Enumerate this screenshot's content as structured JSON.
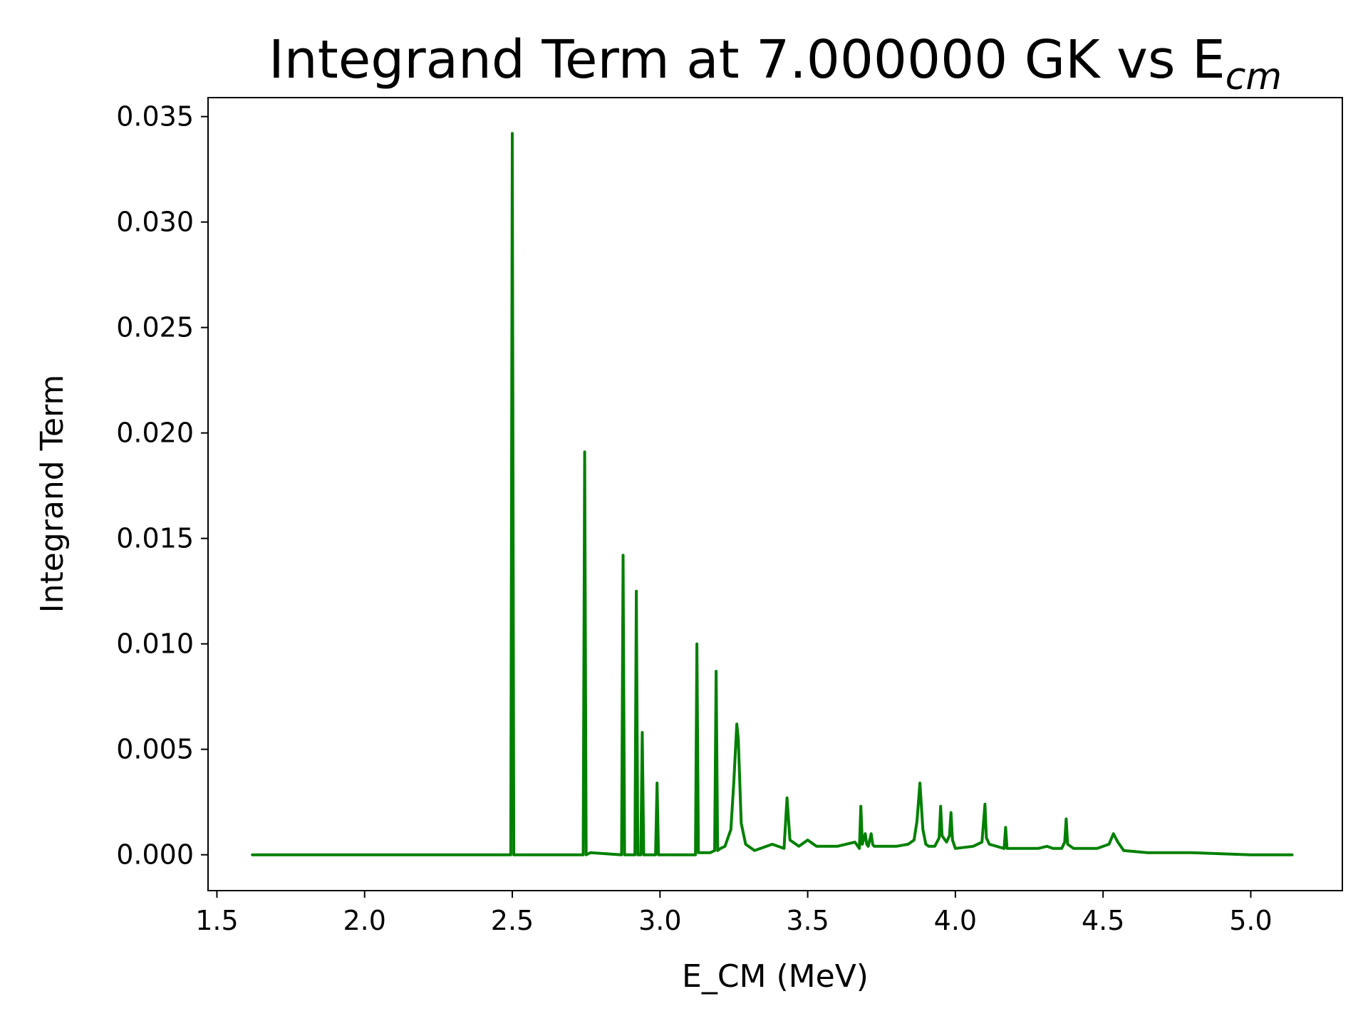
{
  "chart_data": {
    "type": "line",
    "title": "Integrand Term at 7.000000 GK vs E",
    "title_subscript": "cm",
    "xlabel": "E_CM (MeV)",
    "ylabel": "Integrand Term",
    "xlim": [
      1.47,
      5.31
    ],
    "ylim": [
      -0.0017,
      0.0359
    ],
    "xticks": [
      1.5,
      2.0,
      2.5,
      3.0,
      3.5,
      4.0,
      4.5,
      5.0
    ],
    "xtick_labels": [
      "1.5",
      "2.0",
      "2.5",
      "3.0",
      "3.5",
      "4.0",
      "4.5",
      "5.0"
    ],
    "yticks": [
      0.0,
      0.005,
      0.01,
      0.015,
      0.02,
      0.025,
      0.03,
      0.035
    ],
    "ytick_labels": [
      "0.000",
      "0.005",
      "0.010",
      "0.015",
      "0.020",
      "0.025",
      "0.030",
      "0.035"
    ],
    "grid": false,
    "series": [
      {
        "color": "#008000",
        "x": [
          1.62,
          2.0,
          2.495,
          2.5,
          2.505,
          2.74,
          2.745,
          2.75,
          2.765,
          2.87,
          2.875,
          2.88,
          2.915,
          2.92,
          2.925,
          2.935,
          2.94,
          2.945,
          2.985,
          2.99,
          2.995,
          3.0,
          3.1,
          3.12,
          3.125,
          3.13,
          3.17,
          3.185,
          3.19,
          3.195,
          3.205,
          3.22,
          3.24,
          3.25,
          3.26,
          3.265,
          3.275,
          3.29,
          3.32,
          3.38,
          3.42,
          3.43,
          3.44,
          3.47,
          3.5,
          3.53,
          3.6,
          3.66,
          3.675,
          3.68,
          3.685,
          3.695,
          3.7,
          3.705,
          3.715,
          3.72,
          3.725,
          3.75,
          3.8,
          3.84,
          3.86,
          3.87,
          3.88,
          3.89,
          3.9,
          3.91,
          3.93,
          3.945,
          3.95,
          3.955,
          3.97,
          3.98,
          3.985,
          3.99,
          4.0,
          4.06,
          4.09,
          4.1,
          4.105,
          4.115,
          4.165,
          4.17,
          4.175,
          4.2,
          4.28,
          4.31,
          4.33,
          4.36,
          4.37,
          4.375,
          4.38,
          4.4,
          4.48,
          4.52,
          4.535,
          4.55,
          4.57,
          4.65,
          4.8,
          5.0,
          5.14
        ],
        "y": [
          0.0,
          0.0,
          0.0,
          0.0342,
          0.0,
          0.0,
          0.0191,
          0.0,
          0.0001,
          0.0,
          0.0142,
          0.0,
          0.0,
          0.0125,
          0.0,
          0.0,
          0.0058,
          0.0,
          0.0,
          0.0034,
          0.0,
          0.0,
          0.0,
          0.0,
          0.01,
          0.0001,
          0.0001,
          0.0002,
          0.0087,
          0.0002,
          0.0003,
          0.0004,
          0.0012,
          0.0035,
          0.0062,
          0.0055,
          0.0015,
          0.0005,
          0.0002,
          0.0005,
          0.0003,
          0.0027,
          0.0007,
          0.0004,
          0.0007,
          0.0004,
          0.0004,
          0.0006,
          0.0003,
          0.0023,
          0.0005,
          0.001,
          0.0005,
          0.0004,
          0.001,
          0.0005,
          0.0004,
          0.0004,
          0.0004,
          0.0005,
          0.0007,
          0.0016,
          0.0034,
          0.0012,
          0.0005,
          0.0004,
          0.0004,
          0.0008,
          0.0023,
          0.0009,
          0.0006,
          0.0009,
          0.002,
          0.0007,
          0.0003,
          0.0004,
          0.0006,
          0.0024,
          0.0008,
          0.0005,
          0.0003,
          0.0013,
          0.0003,
          0.0003,
          0.0003,
          0.0004,
          0.0003,
          0.0003,
          0.0006,
          0.0017,
          0.0005,
          0.0003,
          0.0003,
          0.0005,
          0.001,
          0.0006,
          0.0002,
          0.0001,
          0.0001,
          0.0,
          0.0
        ]
      }
    ]
  }
}
